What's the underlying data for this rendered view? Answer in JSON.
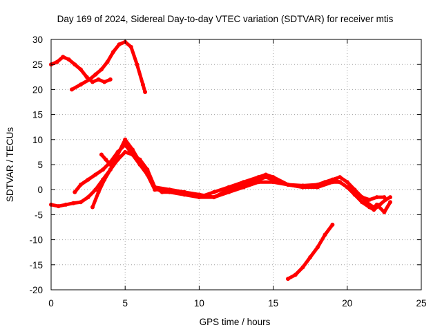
{
  "chart_data": {
    "type": "scatter",
    "title": "Day 169 of 2024, Sidereal Day-to-day VTEC variation (SDTVAR) for receiver mtis",
    "xlabel": "GPS time / hours",
    "ylabel": "SDTVAR / TECUs",
    "xlim": [
      0,
      25
    ],
    "ylim": [
      -20,
      30
    ],
    "xticks": [
      0,
      5,
      10,
      15,
      20,
      25
    ],
    "yticks": [
      -20,
      -15,
      -10,
      -5,
      0,
      5,
      10,
      15,
      20,
      25,
      30
    ],
    "grid": true,
    "marker_color": "#ff0000",
    "series": [
      {
        "name": "arc-high-1",
        "x": [
          0.0,
          0.4,
          0.8,
          1.2,
          1.6,
          2.0,
          2.4,
          2.8,
          3.2,
          3.6,
          4.0
        ],
        "y": [
          25,
          25.5,
          26.5,
          26,
          25,
          24,
          22.5,
          21.5,
          22,
          21.5,
          22
        ]
      },
      {
        "name": "arc-high-2",
        "x": [
          1.4,
          2.0,
          2.6,
          3.0,
          3.4,
          3.8,
          4.2,
          4.6,
          5.0,
          5.4,
          5.8,
          6.2,
          6.35
        ],
        "y": [
          20,
          21,
          22,
          23,
          24,
          25.5,
          27.5,
          29,
          29.5,
          28.5,
          25,
          21,
          19.5
        ]
      },
      {
        "name": "arc-main-1",
        "x": [
          0.0,
          0.5,
          1.0,
          1.5,
          2.0,
          2.5,
          3.0,
          3.5,
          4.0,
          4.5,
          5.0,
          5.5,
          6.0,
          6.5,
          7.0,
          7.5,
          8.0,
          9.0,
          10.0,
          11.0,
          12.0,
          13.0,
          14.0,
          15.0,
          16.0,
          17.0,
          18.0,
          18.5,
          19.0,
          19.5,
          20.0,
          20.5,
          21.0,
          21.5,
          22.0,
          22.5
        ],
        "y": [
          -3,
          -3.3,
          -3,
          -2.7,
          -2.5,
          -1.5,
          0,
          2,
          4,
          6,
          7.5,
          7,
          5,
          3,
          0.5,
          -0.5,
          -0.5,
          -1,
          -1.5,
          -1.5,
          -0.5,
          0.5,
          1.5,
          1.5,
          1,
          0.8,
          1,
          1.5,
          2,
          1.5,
          0.5,
          -0.5,
          -1.5,
          -2,
          -1.5,
          -1.5
        ]
      },
      {
        "name": "arc-main-2",
        "x": [
          1.6,
          2.0,
          2.5,
          3.0,
          3.5,
          4.0,
          4.5,
          5.0,
          5.5,
          6.0,
          6.5,
          7.0,
          8.0,
          9.0,
          10.0,
          11.0,
          12.0,
          13.0,
          14.0,
          14.5,
          15.0,
          16.0,
          17.0,
          18.0,
          19.0,
          19.5,
          20.0,
          20.5,
          21.0,
          21.5,
          21.8,
          22.2,
          22.6,
          22.9
        ],
        "y": [
          -0.5,
          1,
          2,
          3,
          4,
          5.5,
          7.5,
          9,
          7,
          6,
          4,
          0.5,
          0,
          -0.5,
          -1.5,
          -0.5,
          0.5,
          1.5,
          2.5,
          3,
          2.5,
          1,
          0.5,
          0.5,
          1.5,
          1.5,
          0.5,
          -1,
          -2.5,
          -3.5,
          -4,
          -3,
          -2,
          -1.5
        ]
      },
      {
        "name": "arc-main-3",
        "x": [
          2.8,
          3.2,
          3.6,
          4.0,
          4.5,
          5.0,
          5.5,
          6.0,
          6.5,
          7.0,
          8.0,
          9.0,
          10.0,
          11.0,
          12.0,
          13.0,
          14.0,
          14.5,
          15.0,
          16.0,
          17.0,
          18.0,
          19.0,
          19.5,
          20.0,
          20.5,
          21.0,
          21.5,
          21.8,
          22.0,
          22.5,
          22.9
        ],
        "y": [
          -3.5,
          -0.5,
          2,
          4,
          7,
          10,
          8,
          5.5,
          3,
          0,
          0,
          -0.5,
          -1,
          -1.5,
          0,
          1,
          2,
          2.5,
          2,
          1,
          0.5,
          1,
          2,
          2.5,
          1.5,
          0,
          -1.5,
          -3,
          -3.5,
          -3,
          -4.5,
          -2.5
        ]
      },
      {
        "name": "arc-main-4",
        "x": [
          3.4,
          3.7,
          4.0
        ],
        "y": [
          7,
          6,
          5
        ]
      },
      {
        "name": "arc-low",
        "x": [
          16.0,
          16.5,
          17.0,
          17.5,
          18.0,
          18.5,
          19.0
        ],
        "y": [
          -17.8,
          -17,
          -15.5,
          -13.5,
          -11.5,
          -9,
          -7
        ]
      }
    ]
  }
}
